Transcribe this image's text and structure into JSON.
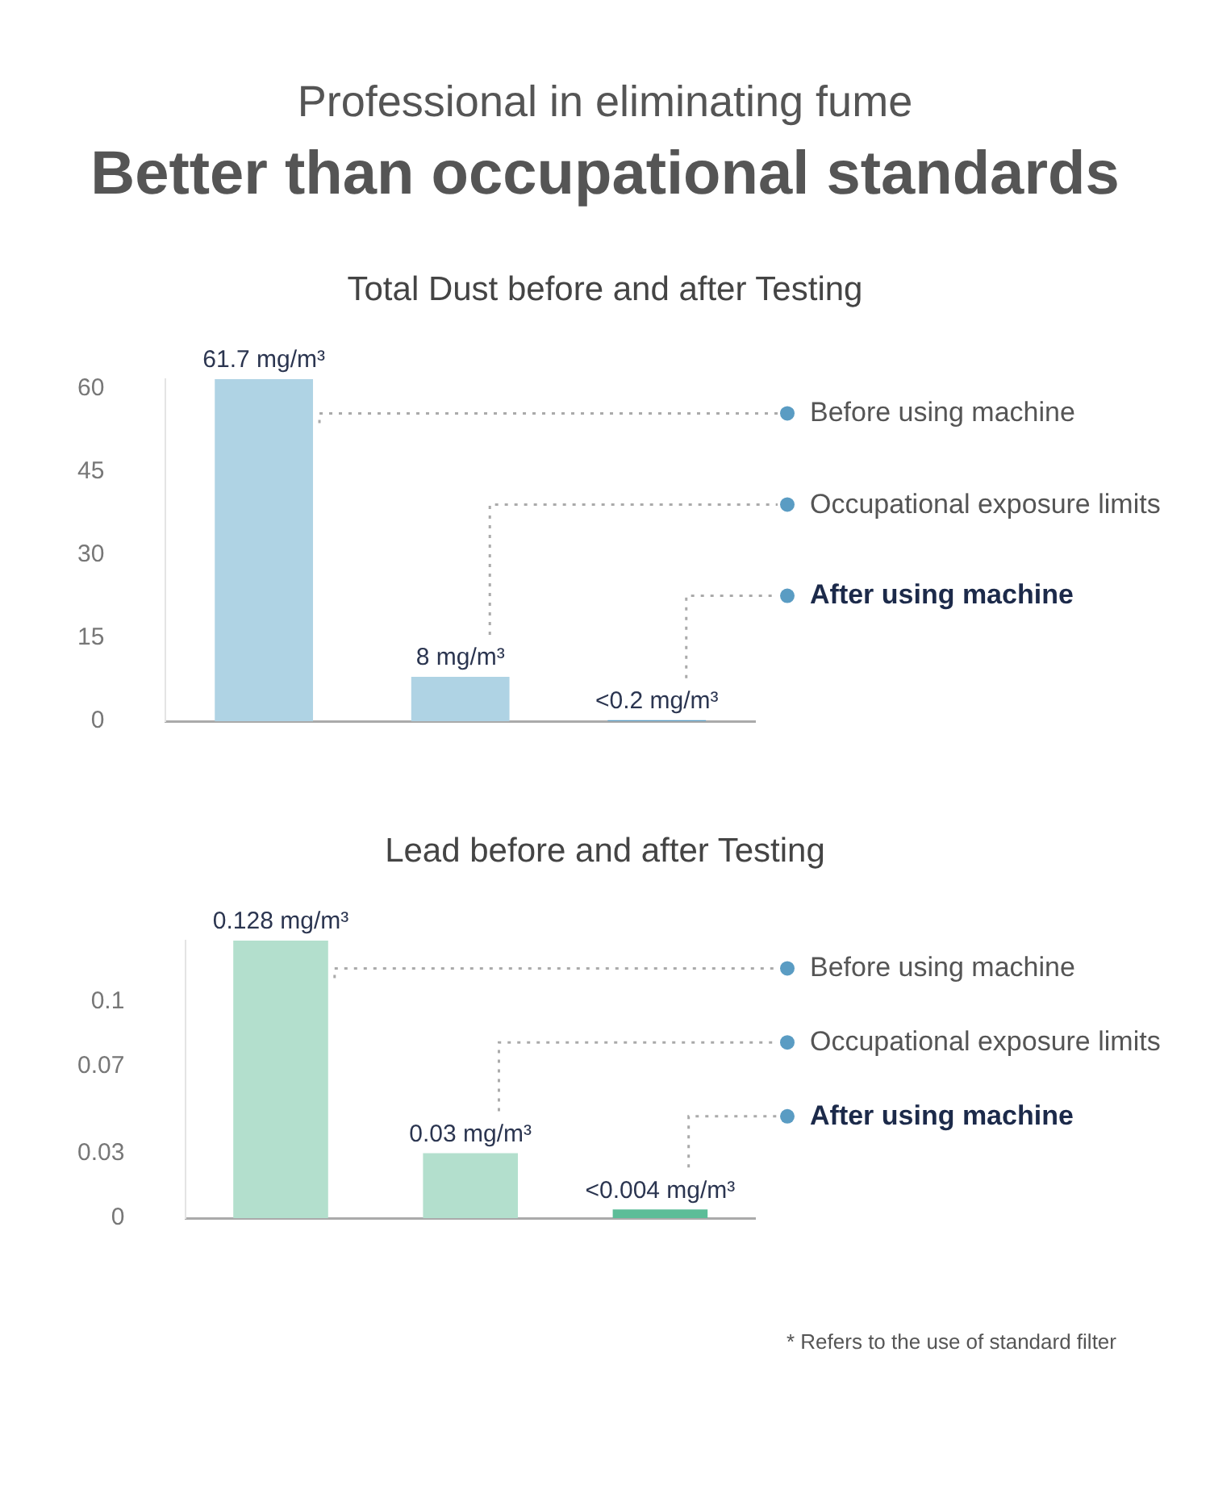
{
  "chart_data": [
    {
      "type": "bar",
      "title": "Total Dust before and after Testing",
      "annotations": [
        "Before using machine",
        "Occupational exposure limits",
        "After using machine",
        "Professional in eliminating fume",
        "Better than occupational standards"
      ],
      "categories": [
        null,
        null,
        null
      ],
      "values": [
        61.7,
        8,
        0.2
      ],
      "colors": [
        "#afd3e4",
        "#afd3e4",
        "#5a9cc3"
      ],
      "value_labels": [
        "61.7 mg/m³",
        "8 mg/m³",
        "<0.2 mg/m³"
      ],
      "ylim": [
        0,
        61.7
      ],
      "yticks": [
        0,
        15,
        30,
        45,
        60
      ]
    },
    {
      "type": "bar",
      "title": "Lead before and after Testing",
      "annotations": [
        "Before using machine",
        "Occupational exposure limits",
        "After using machine",
        "* Refers to the use of standard filter"
      ],
      "categories": [
        null,
        null,
        null
      ],
      "values": [
        0.128,
        0.03,
        0.004
      ],
      "colors": [
        "#b3dfcd",
        "#b3dfcd",
        "#5cbd98"
      ],
      "value_labels": [
        "0.128 mg/m³",
        "0.03 mg/m³",
        "<0.004 mg/m³"
      ],
      "ylim": [
        0,
        0.128
      ],
      "yticks": [
        0,
        0.03,
        0.07,
        0.1
      ]
    }
  ]
}
